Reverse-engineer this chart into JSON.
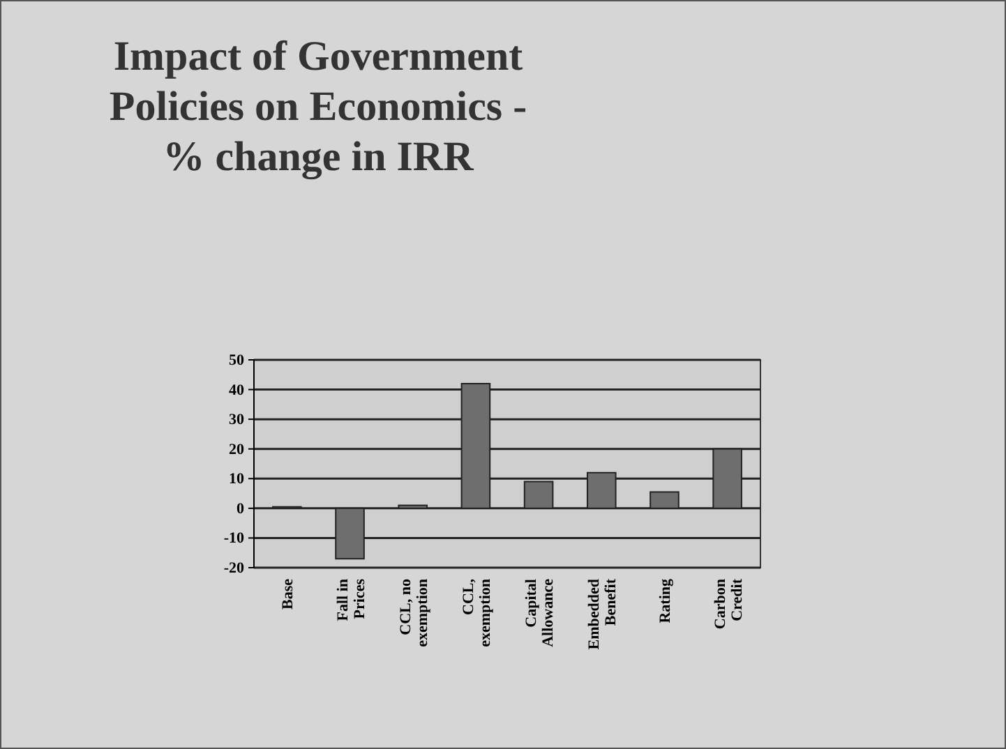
{
  "chart_data": {
    "type": "bar",
    "title": "Impact of Government Policies on Economics - % change in IRR",
    "categories": [
      "Base",
      "Fall in Prices",
      "CCL, no exemption",
      "CCL, exemption",
      "Capital Allowance",
      "Embedded Benefit",
      "Rating",
      "Carbon Credit"
    ],
    "values": [
      0.5,
      -17,
      1,
      42,
      9,
      12,
      5.5,
      20
    ],
    "color": "#6e6e6e",
    "ylim": [
      -20,
      50
    ],
    "yticks": [
      -20,
      -10,
      0,
      10,
      20,
      30,
      40,
      50
    ],
    "grid": "y"
  }
}
